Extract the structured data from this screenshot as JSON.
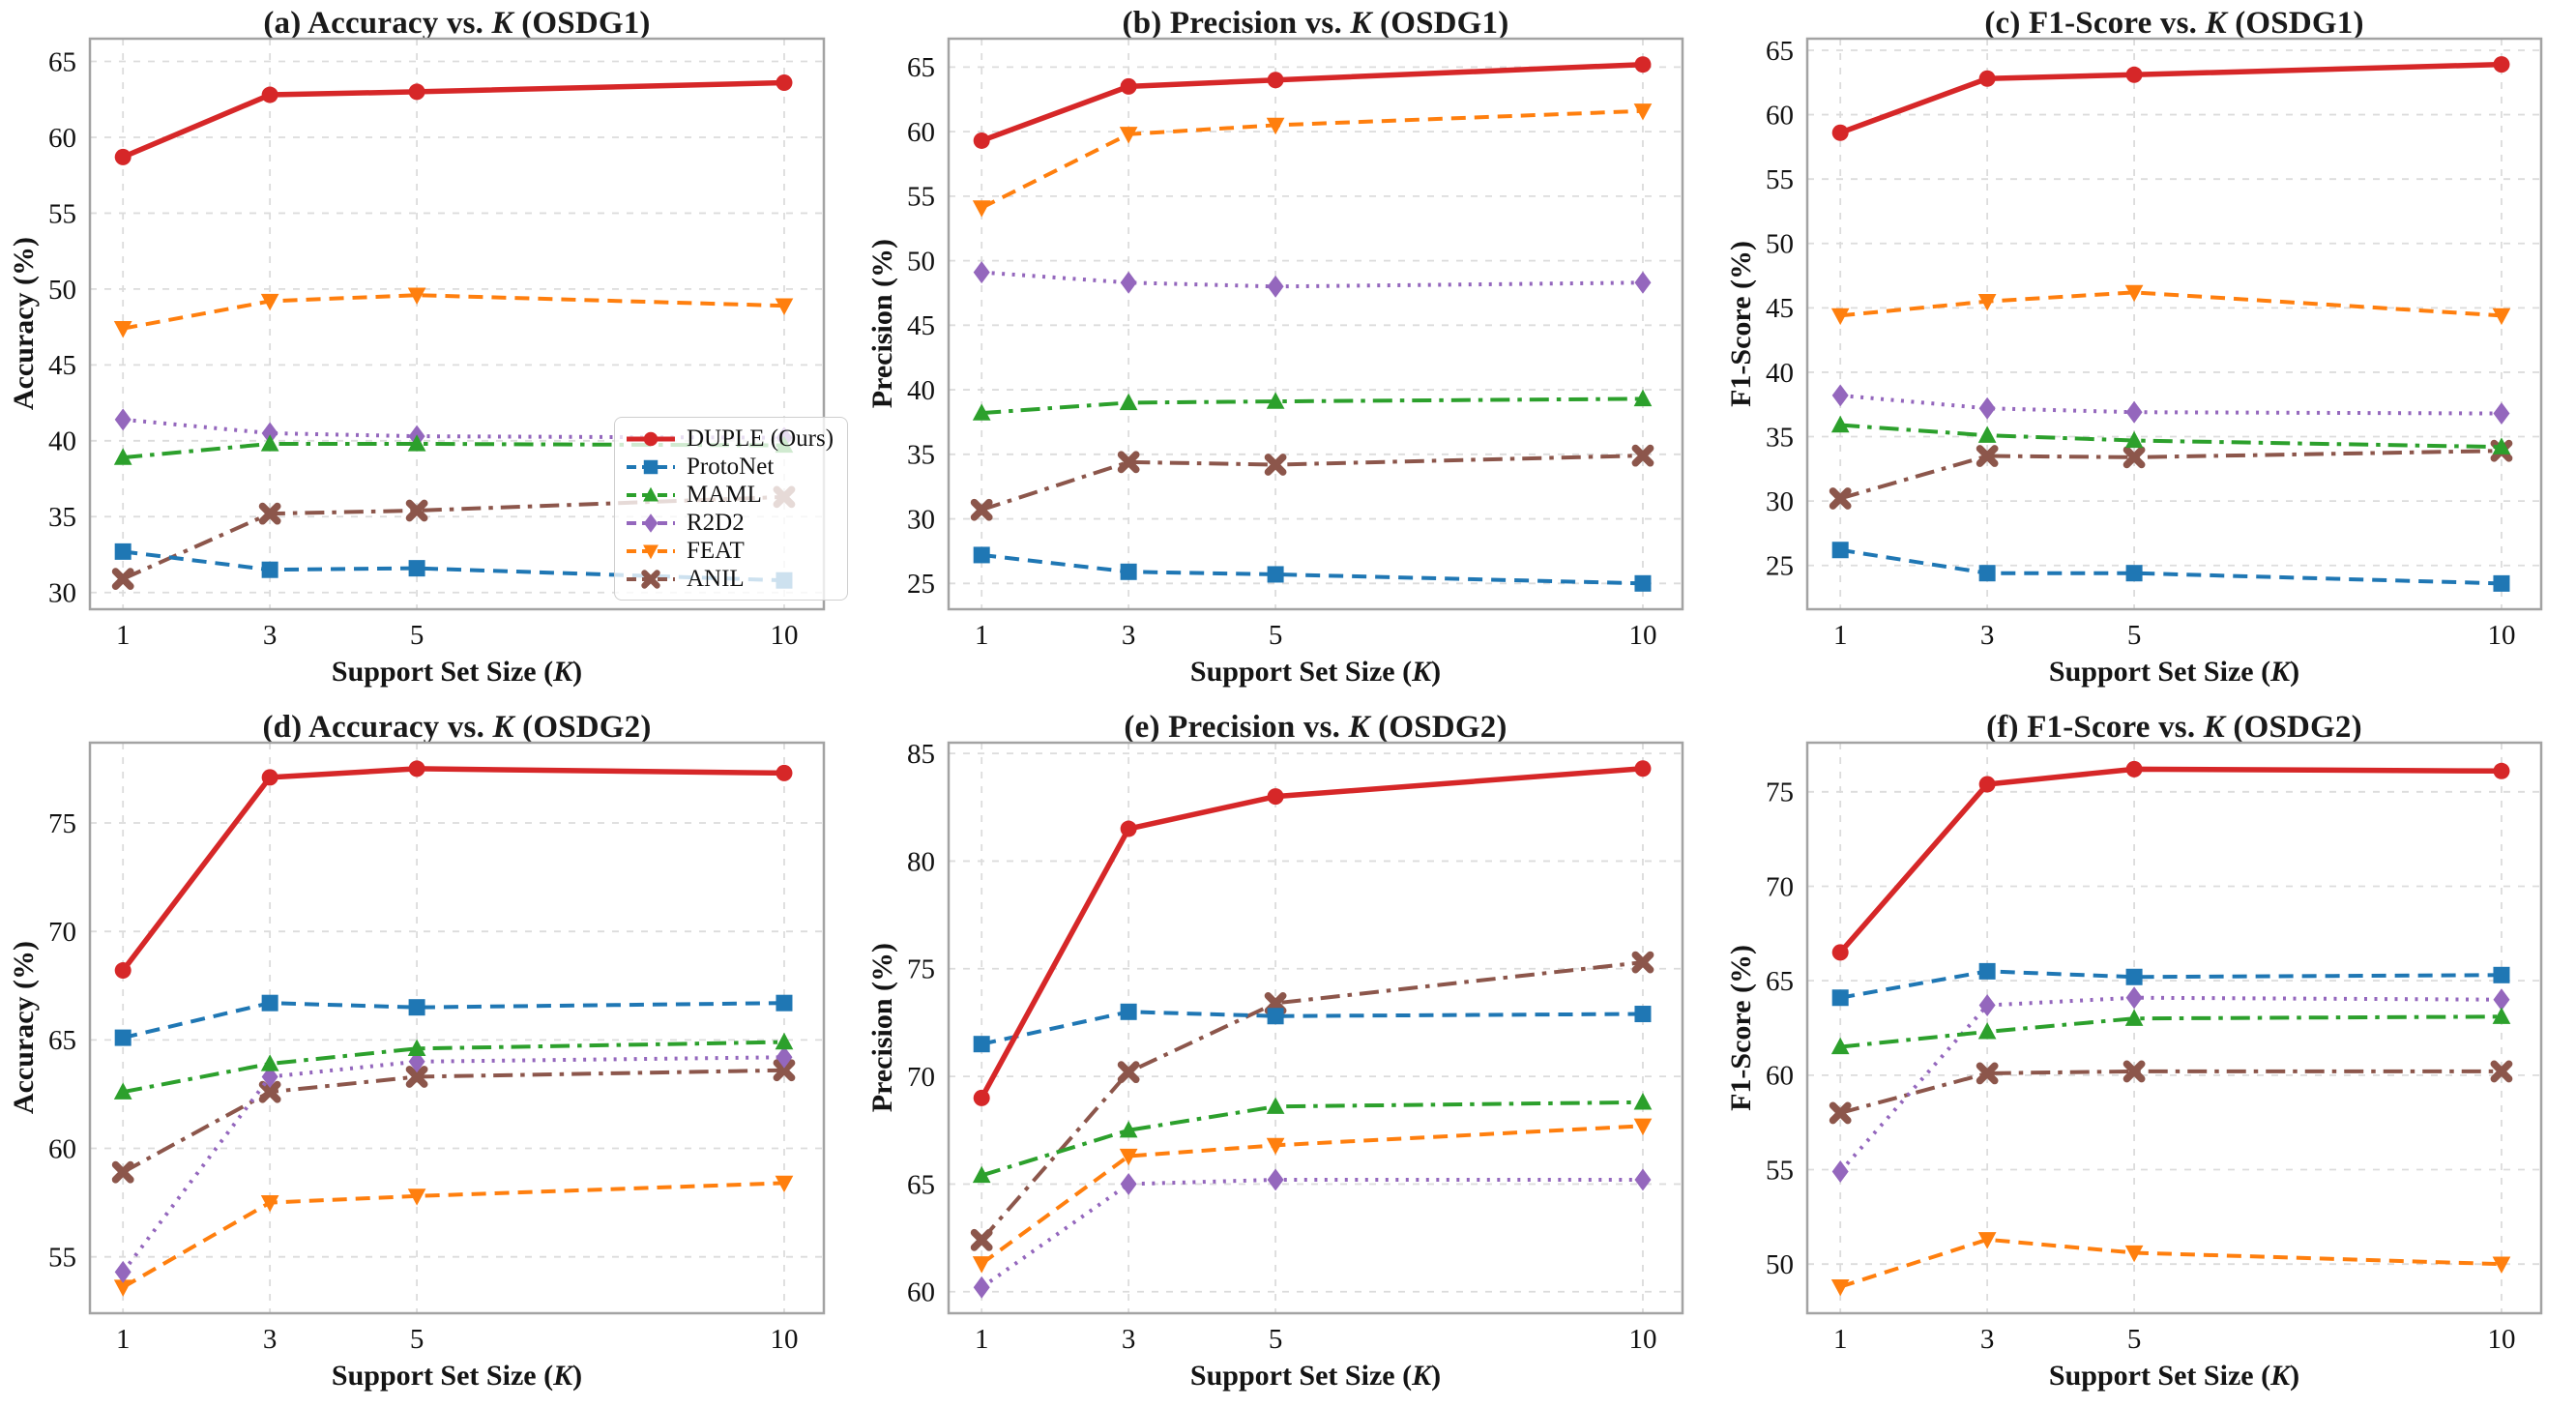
{
  "figure": {
    "background": "#ffffff",
    "grid_color": "#dcdcdc",
    "frame_color": "#a3a3a3",
    "tick_label_color": "#111111",
    "title_color": "#1a1a1a"
  },
  "axes": {
    "xlabel_prefix": "Support Set Size (",
    "xlabel_k": "K",
    "xlabel_suffix": ")",
    "xticks": [
      1,
      3,
      5,
      10
    ],
    "xlim": [
      0.55,
      10.54
    ]
  },
  "series_style": [
    {
      "name": "DUPLE (Ours)",
      "color": "#d62728",
      "dash": "solid",
      "marker": "circle",
      "width": 5.5
    },
    {
      "name": "ProtoNet",
      "color": "#1f77b4",
      "dash": "dashed",
      "marker": "square",
      "width": 4
    },
    {
      "name": "MAML",
      "color": "#2ca02c",
      "dash": "dashdot",
      "marker": "triangle-up",
      "width": 4
    },
    {
      "name": "R2D2",
      "color": "#9467bd",
      "dash": "dotted",
      "marker": "diamond",
      "width": 4
    },
    {
      "name": "FEAT",
      "color": "#ff7f0e",
      "dash": "dashed",
      "marker": "triangle-down",
      "width": 4
    },
    {
      "name": "ANIL",
      "color": "#8c564b",
      "dash": "dashdot",
      "marker": "x",
      "width": 4
    }
  ],
  "legend": {
    "entries": [
      {
        "label": "DUPLE (Ours)"
      },
      {
        "label": "ProtoNet"
      },
      {
        "label": "MAML"
      },
      {
        "label": "R2D2"
      },
      {
        "label": "FEAT"
      },
      {
        "label": "ANIL"
      }
    ]
  },
  "chart_data": [
    {
      "type": "line",
      "title_prefix": "(a) Accuracy vs. ",
      "title_k": "K",
      "title_suffix": " (OSDG1)",
      "ylabel": "Accuracy (%)",
      "x": [
        1,
        3,
        5,
        10
      ],
      "yticks": [
        30,
        35,
        40,
        45,
        50,
        55,
        60,
        65
      ],
      "ylim": [
        28.9,
        66.5
      ],
      "series": [
        {
          "name": "DUPLE (Ours)",
          "values": [
            58.7,
            62.8,
            63.0,
            63.6
          ]
        },
        {
          "name": "ProtoNet",
          "values": [
            32.7,
            31.5,
            31.6,
            30.8
          ]
        },
        {
          "name": "MAML",
          "values": [
            38.9,
            39.8,
            39.8,
            39.7
          ]
        },
        {
          "name": "R2D2",
          "values": [
            41.4,
            40.5,
            40.3,
            40.2
          ]
        },
        {
          "name": "FEAT",
          "values": [
            47.4,
            49.2,
            49.6,
            48.9
          ]
        },
        {
          "name": "ANIL",
          "values": [
            30.9,
            35.2,
            35.4,
            36.3
          ]
        }
      ]
    },
    {
      "type": "line",
      "title_prefix": "(b) Precision vs. ",
      "title_k": "K",
      "title_suffix": " (OSDG1)",
      "ylabel": "Precision (%)",
      "x": [
        1,
        3,
        5,
        10
      ],
      "yticks": [
        25,
        30,
        35,
        40,
        45,
        50,
        55,
        60,
        65
      ],
      "ylim": [
        23.0,
        67.2
      ],
      "series": [
        {
          "name": "DUPLE (Ours)",
          "values": [
            59.3,
            63.5,
            64.0,
            65.2
          ]
        },
        {
          "name": "ProtoNet",
          "values": [
            27.2,
            25.9,
            25.7,
            25.0
          ]
        },
        {
          "name": "MAML",
          "values": [
            38.2,
            39.0,
            39.1,
            39.3
          ]
        },
        {
          "name": "R2D2",
          "values": [
            49.1,
            48.3,
            48.0,
            48.3
          ]
        },
        {
          "name": "FEAT",
          "values": [
            54.1,
            59.8,
            60.5,
            61.6
          ]
        },
        {
          "name": "ANIL",
          "values": [
            30.7,
            34.4,
            34.2,
            34.9
          ]
        }
      ]
    },
    {
      "type": "line",
      "title_prefix": "(c) F1-Score vs. ",
      "title_k": "K",
      "title_suffix": " (OSDG1)",
      "ylabel": "F1-Score (%)",
      "x": [
        1,
        3,
        5,
        10
      ],
      "yticks": [
        25,
        30,
        35,
        40,
        45,
        50,
        55,
        60,
        65
      ],
      "ylim": [
        21.6,
        65.9
      ],
      "series": [
        {
          "name": "DUPLE (Ours)",
          "values": [
            58.6,
            62.8,
            63.1,
            63.9
          ]
        },
        {
          "name": "ProtoNet",
          "values": [
            26.2,
            24.4,
            24.4,
            23.6
          ]
        },
        {
          "name": "MAML",
          "values": [
            35.9,
            35.1,
            34.7,
            34.2
          ]
        },
        {
          "name": "R2D2",
          "values": [
            38.2,
            37.2,
            36.9,
            36.8
          ]
        },
        {
          "name": "FEAT",
          "values": [
            44.4,
            45.5,
            46.2,
            44.4
          ]
        },
        {
          "name": "ANIL",
          "values": [
            30.2,
            33.5,
            33.4,
            33.9
          ]
        }
      ]
    },
    {
      "type": "line",
      "title_prefix": "(d) Accuracy vs. ",
      "title_k": "K",
      "title_suffix": " (OSDG2)",
      "ylabel": "Accuracy (%)",
      "x": [
        1,
        3,
        5,
        10
      ],
      "yticks": [
        55,
        60,
        65,
        70,
        75
      ],
      "ylim": [
        52.4,
        78.7
      ],
      "series": [
        {
          "name": "DUPLE (Ours)",
          "values": [
            68.2,
            77.1,
            77.5,
            77.3
          ]
        },
        {
          "name": "ProtoNet",
          "values": [
            65.1,
            66.7,
            66.5,
            66.7
          ]
        },
        {
          "name": "MAML",
          "values": [
            62.6,
            63.9,
            64.6,
            64.9
          ]
        },
        {
          "name": "R2D2",
          "values": [
            54.3,
            63.3,
            64.0,
            64.2
          ]
        },
        {
          "name": "FEAT",
          "values": [
            53.6,
            57.5,
            57.8,
            58.4
          ]
        },
        {
          "name": "ANIL",
          "values": [
            58.9,
            62.6,
            63.3,
            63.6
          ]
        }
      ]
    },
    {
      "type": "line",
      "title_prefix": "(e) Precision vs. ",
      "title_k": "K",
      "title_suffix": " (OSDG2)",
      "ylabel": "Precision (%)",
      "x": [
        1,
        3,
        5,
        10
      ],
      "yticks": [
        60,
        65,
        70,
        75,
        80,
        85
      ],
      "ylim": [
        59.0,
        85.5
      ],
      "series": [
        {
          "name": "DUPLE (Ours)",
          "values": [
            69.0,
            81.5,
            83.0,
            84.3
          ]
        },
        {
          "name": "ProtoNet",
          "values": [
            71.5,
            73.0,
            72.8,
            72.9
          ]
        },
        {
          "name": "MAML",
          "values": [
            65.4,
            67.5,
            68.6,
            68.8
          ]
        },
        {
          "name": "R2D2",
          "values": [
            60.2,
            65.0,
            65.2,
            65.2
          ]
        },
        {
          "name": "FEAT",
          "values": [
            61.3,
            66.3,
            66.8,
            67.7
          ]
        },
        {
          "name": "ANIL",
          "values": [
            62.4,
            70.2,
            73.4,
            75.3
          ]
        }
      ]
    },
    {
      "type": "line",
      "title_prefix": "(f) F1-Score vs. ",
      "title_k": "K",
      "title_suffix": " (OSDG2)",
      "ylabel": "F1-Score (%)",
      "x": [
        1,
        3,
        5,
        10
      ],
      "yticks": [
        50,
        55,
        60,
        65,
        70,
        75
      ],
      "ylim": [
        47.4,
        77.6
      ],
      "series": [
        {
          "name": "DUPLE (Ours)",
          "values": [
            66.5,
            75.4,
            76.2,
            76.1
          ]
        },
        {
          "name": "ProtoNet",
          "values": [
            64.1,
            65.5,
            65.2,
            65.3
          ]
        },
        {
          "name": "MAML",
          "values": [
            61.5,
            62.3,
            63.0,
            63.1
          ]
        },
        {
          "name": "R2D2",
          "values": [
            54.9,
            63.7,
            64.1,
            64.0
          ]
        },
        {
          "name": "FEAT",
          "values": [
            48.8,
            51.3,
            50.6,
            50.0
          ]
        },
        {
          "name": "ANIL",
          "values": [
            58.0,
            60.1,
            60.2,
            60.2
          ]
        }
      ]
    }
  ]
}
